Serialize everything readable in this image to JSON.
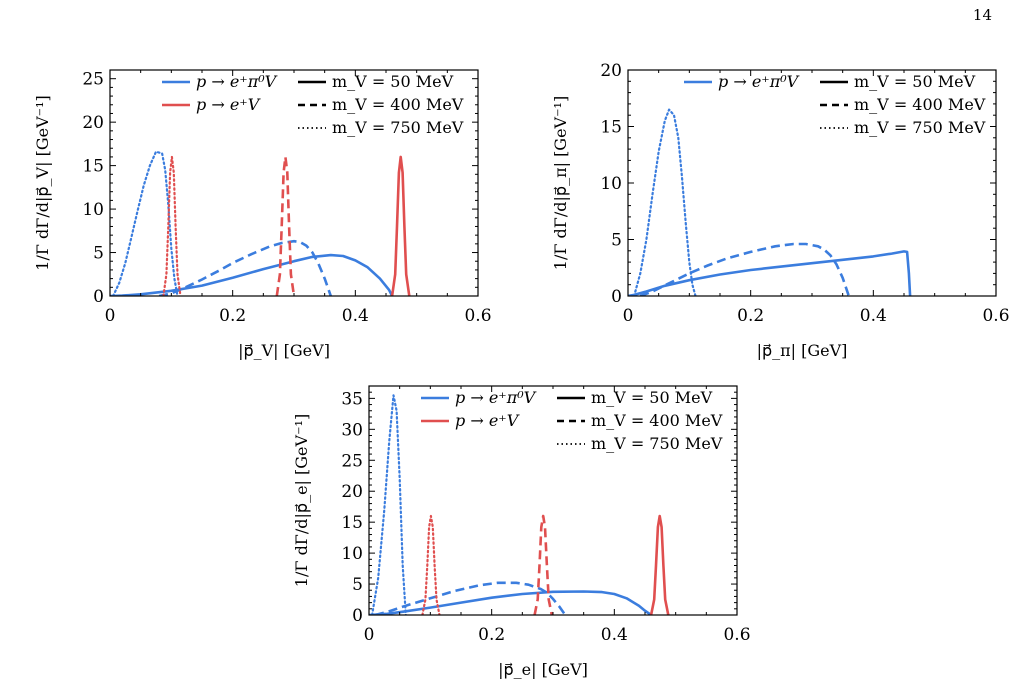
{
  "page": {
    "number": "14"
  },
  "colors": {
    "blue": "#3b7dde",
    "red": "#e04f4f",
    "black": "#000000"
  },
  "chart_data": [
    {
      "type": "line",
      "xlabel": "|p⃗_V| [GeV]",
      "ylabel": "1/Γ dΓ/d|p⃗_V| [GeV⁻¹]",
      "xlim": [
        0,
        0.6
      ],
      "ylim": [
        0,
        26
      ],
      "xticks": [
        0,
        0.2,
        0.4,
        0.6
      ],
      "yticks": [
        0,
        5,
        10,
        15,
        20,
        25
      ],
      "xtick_labels": [
        "0",
        "0.2",
        "0.4",
        "0.6"
      ],
      "ytick_labels": [
        "0",
        "5",
        "10",
        "15",
        "20",
        "25"
      ],
      "legend": [
        {
          "label": "p → e⁺π⁰V",
          "color": "blue",
          "style": "solid"
        },
        {
          "label": "p → e⁺V",
          "color": "red",
          "style": "solid"
        },
        {
          "label": "m_V = 50 MeV",
          "color": "black",
          "style": "solid"
        },
        {
          "label": "m_V = 400 MeV",
          "color": "black",
          "style": "dashed"
        },
        {
          "label": "m_V = 750 MeV",
          "color": "black",
          "style": "dotted"
        }
      ],
      "series": [
        {
          "color": "blue",
          "style": "solid",
          "x": [
            0,
            0.02,
            0.05,
            0.1,
            0.15,
            0.2,
            0.25,
            0.3,
            0.33,
            0.36,
            0.38,
            0.4,
            0.42,
            0.44,
            0.455,
            0.46
          ],
          "y": [
            0,
            0.05,
            0.2,
            0.6,
            1.2,
            2.1,
            3.1,
            4.0,
            4.5,
            4.7,
            4.6,
            4.1,
            3.3,
            2.0,
            0.7,
            0
          ]
        },
        {
          "color": "blue",
          "style": "dashed",
          "x": [
            0.08,
            0.1,
            0.12,
            0.15,
            0.18,
            0.2,
            0.23,
            0.26,
            0.28,
            0.3,
            0.31,
            0.32,
            0.33,
            0.34,
            0.35,
            0.36
          ],
          "y": [
            0,
            0.3,
            0.9,
            1.9,
            3.0,
            3.8,
            4.8,
            5.7,
            6.1,
            6.3,
            6.2,
            5.8,
            5.0,
            3.7,
            2.0,
            0
          ]
        },
        {
          "color": "blue",
          "style": "dotted",
          "x": [
            0.005,
            0.015,
            0.025,
            0.035,
            0.045,
            0.055,
            0.065,
            0.075,
            0.085,
            0.09,
            0.095,
            0.1,
            0.105,
            0.11
          ],
          "y": [
            0,
            1.5,
            3.8,
            6.8,
            9.8,
            12.7,
            15.0,
            16.6,
            16.4,
            14.5,
            10.5,
            5.5,
            2.0,
            0
          ]
        },
        {
          "color": "red",
          "style": "solid",
          "x": [
            0.46,
            0.465,
            0.468,
            0.471,
            0.474,
            0.477,
            0.48,
            0.483,
            0.488
          ],
          "y": [
            0,
            2.5,
            8.0,
            14.2,
            16.0,
            14.2,
            8.0,
            2.5,
            0
          ]
        },
        {
          "color": "red",
          "style": "dashed",
          "x": [
            0.272,
            0.277,
            0.28,
            0.283,
            0.286,
            0.289,
            0.292,
            0.295,
            0.3
          ],
          "y": [
            0,
            2.5,
            8.0,
            14.2,
            16.0,
            14.2,
            8.0,
            2.5,
            0
          ]
        },
        {
          "color": "red",
          "style": "dotted",
          "x": [
            0.087,
            0.092,
            0.095,
            0.098,
            0.101,
            0.104,
            0.107,
            0.11,
            0.115
          ],
          "y": [
            0,
            2.5,
            8.0,
            14.2,
            16.0,
            14.2,
            8.0,
            2.5,
            0
          ]
        }
      ]
    },
    {
      "type": "line",
      "xlabel": "|p⃗_π| [GeV]",
      "ylabel": "1/Γ dΓ/d|p⃗_π| [GeV⁻¹]",
      "xlim": [
        0,
        0.6
      ],
      "ylim": [
        0,
        20
      ],
      "xticks": [
        0,
        0.2,
        0.4,
        0.6
      ],
      "yticks": [
        0,
        5,
        10,
        15,
        20
      ],
      "xtick_labels": [
        "0",
        "0.2",
        "0.4",
        "0.6"
      ],
      "ytick_labels": [
        "0",
        "5",
        "10",
        "15",
        "20"
      ],
      "legend": [
        {
          "label": "p → e⁺π⁰V",
          "color": "blue",
          "style": "solid"
        },
        {
          "label": "m_V = 50 MeV",
          "color": "black",
          "style": "solid"
        },
        {
          "label": "m_V = 400 MeV",
          "color": "black",
          "style": "dashed"
        },
        {
          "label": "m_V = 750 MeV",
          "color": "black",
          "style": "dotted"
        }
      ],
      "series": [
        {
          "color": "blue",
          "style": "solid",
          "x": [
            0,
            0.01,
            0.03,
            0.06,
            0.1,
            0.15,
            0.2,
            0.25,
            0.3,
            0.35,
            0.4,
            0.43,
            0.45,
            0.455,
            0.458,
            0.46
          ],
          "y": [
            0,
            0.1,
            0.4,
            0.9,
            1.4,
            1.9,
            2.3,
            2.6,
            2.9,
            3.2,
            3.5,
            3.75,
            3.95,
            3.9,
            2.0,
            0
          ]
        },
        {
          "color": "blue",
          "style": "dashed",
          "x": [
            0.02,
            0.04,
            0.07,
            0.1,
            0.13,
            0.16,
            0.2,
            0.24,
            0.27,
            0.29,
            0.31,
            0.32,
            0.33,
            0.34,
            0.35,
            0.36
          ],
          "y": [
            0,
            0.4,
            1.2,
            2.0,
            2.7,
            3.3,
            3.9,
            4.4,
            4.6,
            4.6,
            4.4,
            4.1,
            3.6,
            2.8,
            1.6,
            0
          ]
        },
        {
          "color": "blue",
          "style": "dotted",
          "x": [
            0.01,
            0.02,
            0.03,
            0.04,
            0.05,
            0.06,
            0.067,
            0.075,
            0.082,
            0.088,
            0.094,
            0.1,
            0.105,
            0.11
          ],
          "y": [
            0,
            2.0,
            5.0,
            9.0,
            12.8,
            15.5,
            16.5,
            16.0,
            14.0,
            10.5,
            6.5,
            3.0,
            1.0,
            0
          ]
        }
      ]
    },
    {
      "type": "line",
      "xlabel": "|p⃗_e| [GeV]",
      "ylabel": "1/Γ dΓ/d|p⃗_e| [GeV⁻¹]",
      "xlim": [
        0,
        0.6
      ],
      "ylim": [
        0,
        37
      ],
      "xticks": [
        0,
        0.2,
        0.4,
        0.6
      ],
      "yticks": [
        0,
        5,
        10,
        15,
        20,
        25,
        30,
        35
      ],
      "xtick_labels": [
        "0",
        "0.2",
        "0.4",
        "0.6"
      ],
      "ytick_labels": [
        "0",
        "5",
        "10",
        "15",
        "20",
        "25",
        "30",
        "35"
      ],
      "legend": [
        {
          "label": "p → e⁺π⁰V",
          "color": "blue",
          "style": "solid"
        },
        {
          "label": "p → e⁺V",
          "color": "red",
          "style": "solid"
        },
        {
          "label": "m_V = 50 MeV",
          "color": "black",
          "style": "solid"
        },
        {
          "label": "m_V = 400 MeV",
          "color": "black",
          "style": "dashed"
        },
        {
          "label": "m_V = 750 MeV",
          "color": "black",
          "style": "dotted"
        }
      ],
      "series": [
        {
          "color": "blue",
          "style": "solid",
          "x": [
            0,
            0.03,
            0.06,
            0.1,
            0.15,
            0.2,
            0.25,
            0.3,
            0.35,
            0.38,
            0.4,
            0.42,
            0.44,
            0.45,
            0.46
          ],
          "y": [
            0,
            0.2,
            0.6,
            1.2,
            2.0,
            2.8,
            3.4,
            3.75,
            3.8,
            3.7,
            3.4,
            2.7,
            1.5,
            0.7,
            0
          ]
        },
        {
          "color": "blue",
          "style": "dashed",
          "x": [
            0.01,
            0.03,
            0.06,
            0.1,
            0.14,
            0.18,
            0.21,
            0.24,
            0.26,
            0.28,
            0.29,
            0.3,
            0.31,
            0.32
          ],
          "y": [
            0,
            0.5,
            1.5,
            2.7,
            3.9,
            4.8,
            5.2,
            5.2,
            4.9,
            4.2,
            3.6,
            2.6,
            1.4,
            0
          ]
        },
        {
          "color": "blue",
          "style": "dotted",
          "x": [
            0.005,
            0.015,
            0.025,
            0.033,
            0.04,
            0.045,
            0.05,
            0.055,
            0.06
          ],
          "y": [
            0,
            6,
            17,
            28,
            35.5,
            33,
            22,
            8,
            0
          ]
        },
        {
          "color": "red",
          "style": "solid",
          "x": [
            0.46,
            0.465,
            0.468,
            0.471,
            0.474,
            0.477,
            0.48,
            0.483,
            0.488
          ],
          "y": [
            0,
            2.5,
            8.0,
            14.2,
            16.0,
            14.2,
            8.0,
            2.5,
            0
          ]
        },
        {
          "color": "red",
          "style": "dashed",
          "x": [
            0.27,
            0.275,
            0.278,
            0.281,
            0.284,
            0.287,
            0.29,
            0.293,
            0.298
          ],
          "y": [
            0,
            2.5,
            8.0,
            14.2,
            16.0,
            14.2,
            8.0,
            2.5,
            0
          ]
        },
        {
          "color": "red",
          "style": "dotted",
          "x": [
            0.087,
            0.092,
            0.095,
            0.098,
            0.101,
            0.104,
            0.107,
            0.11,
            0.115
          ],
          "y": [
            0,
            2.5,
            8.0,
            14.2,
            16.0,
            14.2,
            8.0,
            2.5,
            0
          ]
        }
      ]
    }
  ]
}
